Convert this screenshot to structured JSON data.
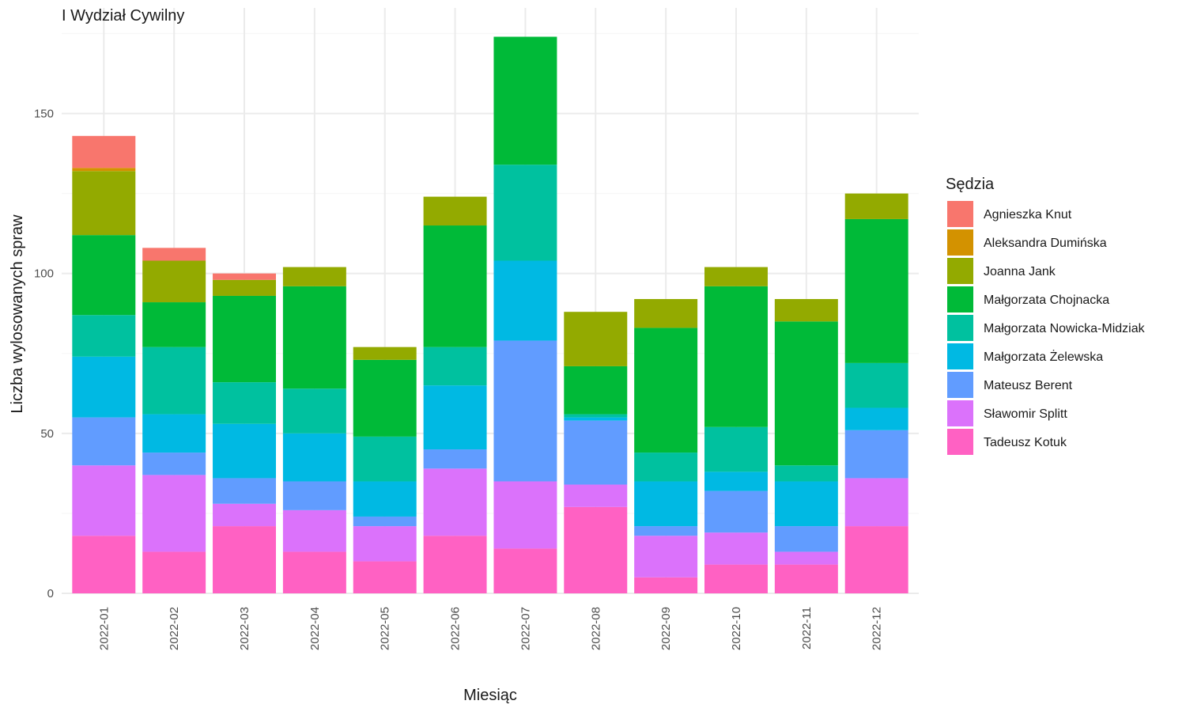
{
  "chart_data": {
    "type": "bar",
    "stacked": true,
    "title": "I Wydział Cywilny",
    "xlabel": "Miesiąc",
    "ylabel": "Liczba wylosowanych spraw",
    "ylim": [
      0,
      180
    ],
    "yticks": [
      0,
      50,
      100,
      150
    ],
    "grid": true,
    "legend_title": "Sędzia",
    "legend_position": "right",
    "categories": [
      "2022-01",
      "2022-02",
      "2022-03",
      "2022-04",
      "2022-05",
      "2022-06",
      "2022-07",
      "2022-08",
      "2022-09",
      "2022-10",
      "2022-11",
      "2022-12"
    ],
    "series": [
      {
        "name": "Agnieszka Knut",
        "color": "#F8766D",
        "values": [
          10,
          4,
          2,
          0,
          0,
          0,
          0,
          0,
          0,
          0,
          0,
          0
        ]
      },
      {
        "name": "Aleksandra Dumińska",
        "color": "#D39200",
        "values": [
          1,
          0,
          0,
          0,
          0,
          0,
          0,
          0,
          0,
          0,
          0,
          0
        ]
      },
      {
        "name": "Joanna Jank",
        "color": "#93AA00",
        "values": [
          20,
          13,
          5,
          6,
          4,
          9,
          0,
          17,
          9,
          6,
          7,
          8
        ]
      },
      {
        "name": "Małgorzata Chojnacka",
        "color": "#00BA38",
        "values": [
          25,
          14,
          27,
          32,
          24,
          38,
          40,
          15,
          39,
          44,
          45,
          45
        ]
      },
      {
        "name": "Małgorzata Nowicka-Midziak",
        "color": "#00C19F",
        "values": [
          13,
          21,
          13,
          14,
          14,
          12,
          30,
          1,
          9,
          14,
          5,
          14
        ]
      },
      {
        "name": "Małgorzata Żelewska",
        "color": "#00B9E3",
        "values": [
          19,
          12,
          17,
          15,
          11,
          20,
          25,
          1,
          14,
          6,
          14,
          7
        ]
      },
      {
        "name": "Mateusz Berent",
        "color": "#619CFF",
        "values": [
          15,
          7,
          8,
          9,
          3,
          6,
          44,
          20,
          3,
          13,
          8,
          15
        ]
      },
      {
        "name": "Sławomir Splitt",
        "color": "#DB72FB",
        "values": [
          22,
          24,
          7,
          13,
          11,
          21,
          21,
          7,
          13,
          10,
          4,
          15
        ]
      },
      {
        "name": "Tadeusz Kotuk",
        "color": "#FF61C3",
        "values": [
          18,
          13,
          21,
          13,
          10,
          18,
          14,
          27,
          5,
          9,
          9,
          21
        ]
      }
    ]
  }
}
